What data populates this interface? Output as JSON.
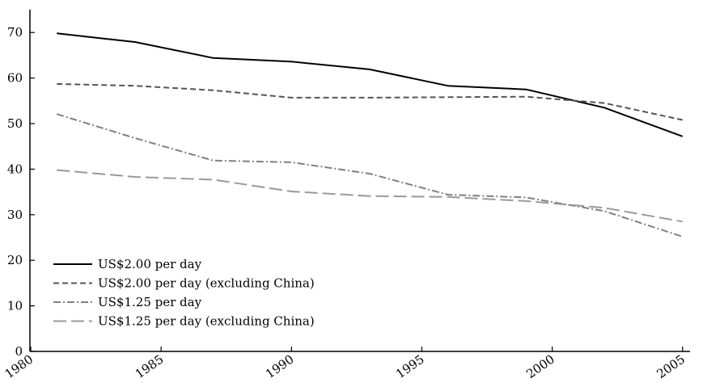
{
  "chart_data": {
    "type": "line",
    "title": "",
    "xlabel": "",
    "ylabel": "",
    "xlim": [
      1980,
      2006
    ],
    "ylim": [
      0,
      75
    ],
    "x_ticks": [
      "1980",
      "1985",
      "1990",
      "1995",
      "2000",
      "2005"
    ],
    "y_ticks": [
      "0",
      "10",
      "20",
      "30",
      "40",
      "50",
      "60",
      "70"
    ],
    "grid": false,
    "legend_position": "bottom-left",
    "series": [
      {
        "name": "US$2.00 per day",
        "color": "#000000",
        "line_style": "solid",
        "x": [
          1981,
          1984,
          1987,
          1990,
          1993,
          1996,
          1999,
          2002,
          2005
        ],
        "y": [
          69.8,
          67.9,
          64.4,
          63.6,
          61.9,
          58.3,
          57.5,
          53.5,
          47.2
        ]
      },
      {
        "name": "US$2.00 per day (excluding China)",
        "color": "#555555",
        "line_style": "dashed",
        "x": [
          1981,
          1984,
          1987,
          1990,
          1993,
          1996,
          1999,
          2002,
          2005
        ],
        "y": [
          58.7,
          58.3,
          57.3,
          55.7,
          55.7,
          55.8,
          55.9,
          54.5,
          50.8
        ]
      },
      {
        "name": "US$1.25 per day",
        "color": "#808080",
        "line_style": "dash-dot",
        "x": [
          1981,
          1984,
          1987,
          1990,
          1993,
          1996,
          1999,
          2002,
          2005
        ],
        "y": [
          52.1,
          46.8,
          41.9,
          41.5,
          39.0,
          34.4,
          33.8,
          30.8,
          25.2
        ]
      },
      {
        "name": "US$1.25 per day (excluding China)",
        "color": "#999999",
        "line_style": "long-dash",
        "x": [
          1981,
          1984,
          1987,
          1990,
          1993,
          1996,
          1999,
          2002,
          2005
        ],
        "y": [
          39.8,
          38.3,
          37.7,
          35.1,
          34.1,
          33.9,
          33.0,
          31.5,
          28.5
        ]
      }
    ]
  }
}
